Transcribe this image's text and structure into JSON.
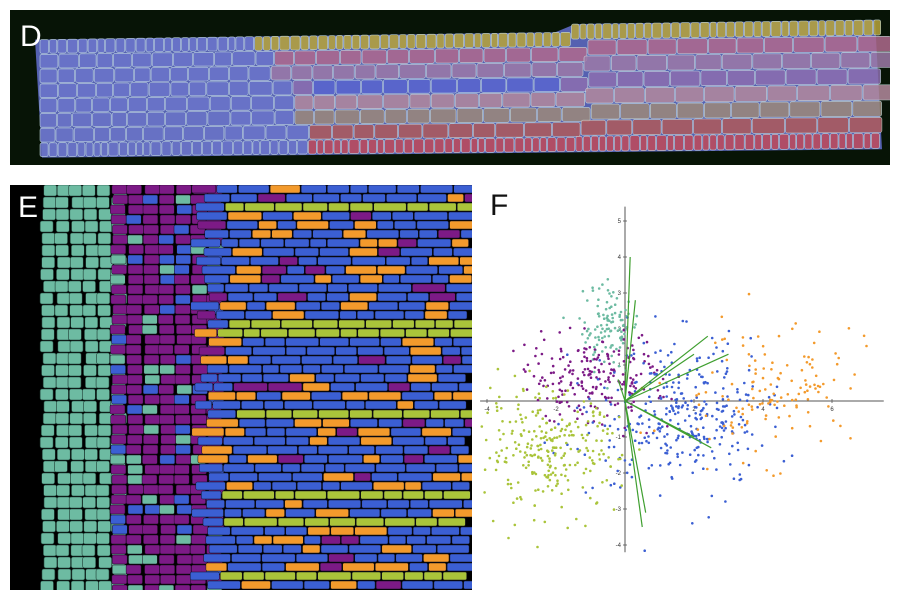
{
  "panels": {
    "d": {
      "label": "D"
    },
    "e": {
      "label": "E"
    },
    "f": {
      "label": "F"
    }
  },
  "colors": {
    "teal": "#6dbba2",
    "purple": "#7c1a86",
    "blue": "#3b5fd3",
    "orange": "#f39a2c",
    "olive": "#aac43a",
    "axis": "#555555",
    "loading_line": "#3f9f2f",
    "d_background": "#071406",
    "d_cell_outline": "#cfe8e8"
  },
  "chart_data": {
    "type": "scatter",
    "title": "",
    "xlabel": "",
    "ylabel": "",
    "xlim": [
      -4.2,
      7.5
    ],
    "ylim": [
      -4.2,
      5.4
    ],
    "x_ticks": [
      {
        "value": -4,
        "label": "-4"
      },
      {
        "value": -2,
        "label": "-2"
      },
      {
        "value": 2,
        "label": "2"
      },
      {
        "value": 4,
        "label": "4"
      },
      {
        "value": 6,
        "label": "6"
      }
    ],
    "y_ticks": [
      {
        "value": 5,
        "label": "5"
      },
      {
        "value": 4,
        "label": "4"
      },
      {
        "value": 3,
        "label": "3"
      },
      {
        "value": 2,
        "label": "2"
      },
      {
        "value": 1,
        "label": "1"
      },
      {
        "value": -1,
        "label": "-1"
      },
      {
        "value": -2,
        "label": "-2"
      },
      {
        "value": -3,
        "label": "-3"
      },
      {
        "value": -4,
        "label": "-4"
      }
    ],
    "clusters": [
      {
        "color": "#6dbba2",
        "center": [
          -0.5,
          2.1
        ],
        "spread": [
          0.45,
          0.6
        ],
        "n": 110
      },
      {
        "color": "#7c1a86",
        "center": [
          -0.9,
          0.6
        ],
        "spread": [
          1.05,
          0.6
        ],
        "n": 210
      },
      {
        "color": "#3b5fd3",
        "center": [
          1.6,
          -0.4
        ],
        "spread": [
          1.25,
          1.0
        ],
        "n": 330
      },
      {
        "color": "#f39a2c",
        "center": [
          4.2,
          0.3
        ],
        "spread": [
          1.5,
          0.9
        ],
        "n": 140
      },
      {
        "color": "#aac43a",
        "center": [
          -2.2,
          -1.4
        ],
        "spread": [
          1.0,
          0.8
        ],
        "n": 260
      }
    ],
    "loadings": [
      [
        0.15,
        4.0
      ],
      [
        0.3,
        2.8
      ],
      [
        2.4,
        1.8
      ],
      [
        3.0,
        1.3
      ],
      [
        2.0,
        1.3
      ],
      [
        2.0,
        -1.0
      ],
      [
        2.5,
        -1.3
      ],
      [
        0.6,
        -3.1
      ],
      [
        0.5,
        -3.5
      ],
      [
        -0.2,
        0.6
      ]
    ]
  }
}
